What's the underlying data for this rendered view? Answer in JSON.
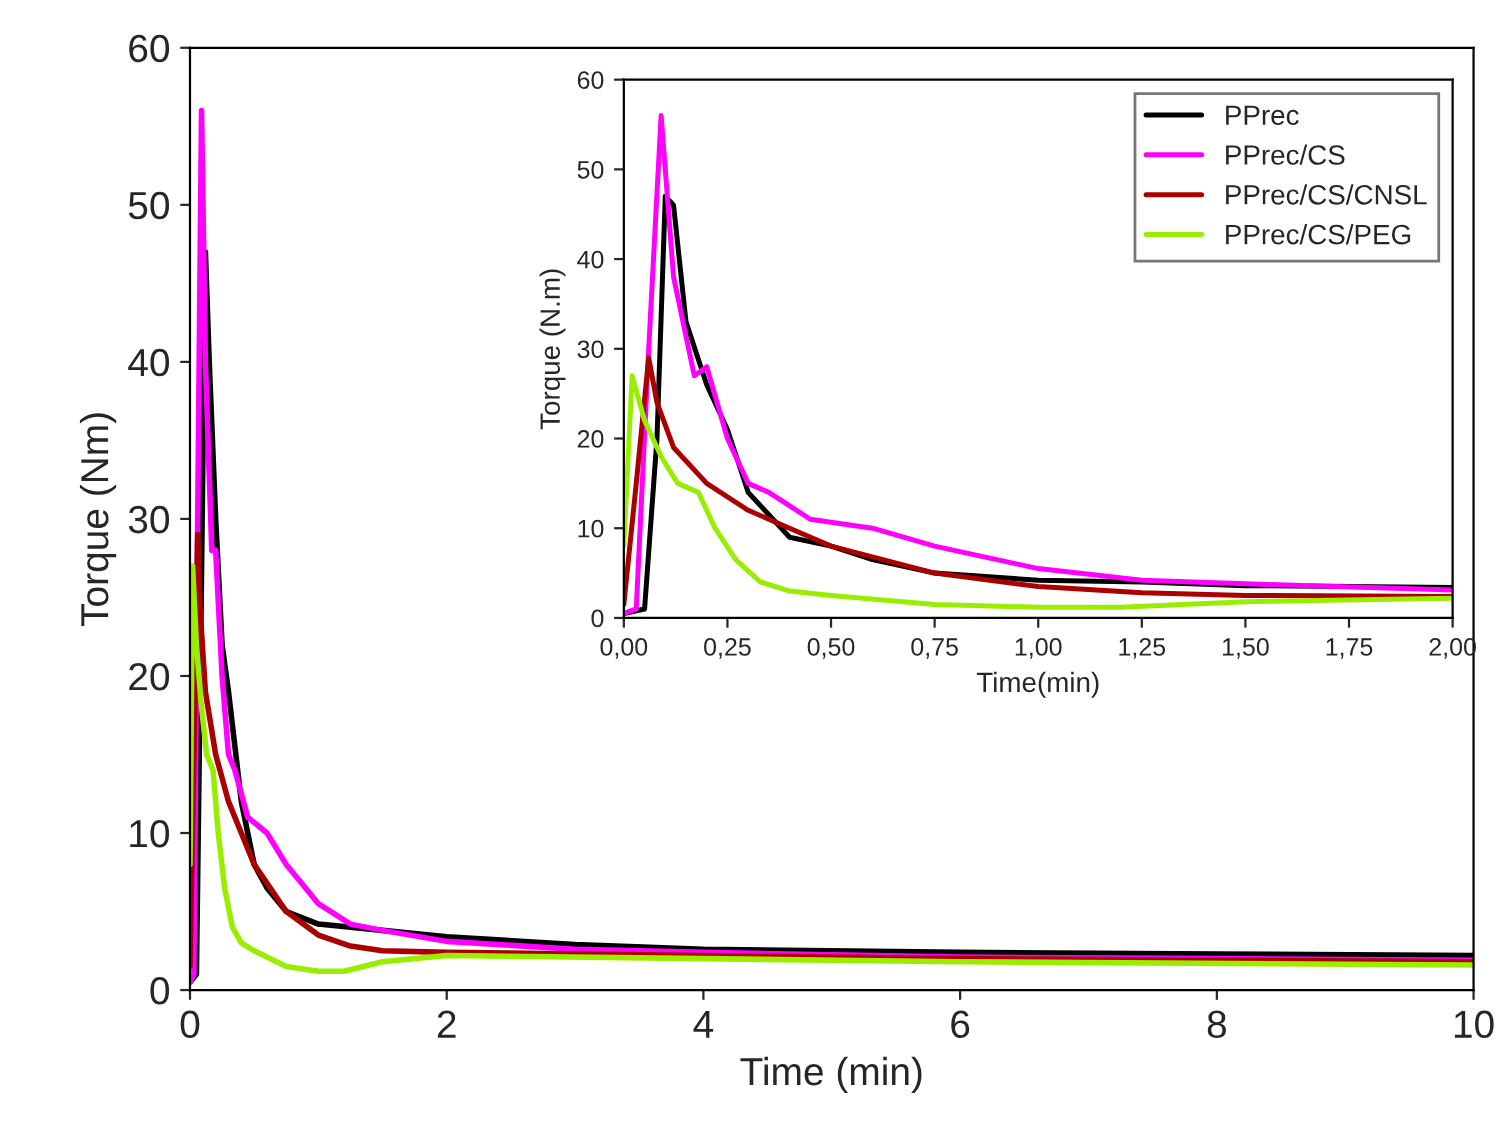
{
  "chart_data": [
    {
      "type": "line",
      "xlabel": "Time (min)",
      "ylabel": "Torque (Nm)",
      "xlim": [
        0,
        10
      ],
      "ylim": [
        0,
        60
      ],
      "xticks": [
        0,
        2,
        4,
        6,
        8,
        10
      ],
      "yticks": [
        0,
        10,
        20,
        30,
        40,
        50,
        60
      ],
      "grid": false,
      "legend": false,
      "series": [
        {
          "color": "#000000",
          "x": [
            0,
            0.05,
            0.08,
            0.12,
            0.15,
            0.2,
            0.25,
            0.3,
            0.4,
            0.5,
            0.6,
            0.75,
            1,
            1.5,
            2,
            3,
            4,
            6,
            8,
            10
          ],
          "values": [
            0.5,
            1,
            20,
            47,
            40,
            30,
            22,
            19,
            12,
            8,
            6.5,
            5,
            4.2,
            3.8,
            3.4,
            2.9,
            2.6,
            2.4,
            2.3,
            2.2
          ]
        },
        {
          "color": "#ff00ff",
          "x": [
            0,
            0.03,
            0.06,
            0.09,
            0.12,
            0.17,
            0.2,
            0.25,
            0.3,
            0.35,
            0.45,
            0.6,
            0.75,
            0.9,
            1,
            1.25,
            1.5,
            2,
            3,
            4,
            6,
            8,
            10
          ],
          "values": [
            0.5,
            1,
            30,
            56,
            40,
            28,
            28,
            20,
            15,
            14,
            11,
            10,
            8,
            6.5,
            5.5,
            4.2,
            3.8,
            3.1,
            2.6,
            2.4,
            2.1,
            2.0,
            1.9
          ]
        },
        {
          "color": "#aa0000",
          "x": [
            0,
            0.03,
            0.06,
            0.08,
            0.12,
            0.2,
            0.3,
            0.4,
            0.5,
            0.75,
            1,
            1.25,
            1.5,
            2,
            4,
            6,
            10
          ],
          "values": [
            1.5,
            15,
            29,
            24,
            19,
            15,
            12,
            10,
            8,
            5,
            3.5,
            2.8,
            2.5,
            2.4,
            2.2,
            2.0,
            1.8
          ]
        },
        {
          "color": "#99ee00",
          "x": [
            0,
            0.02,
            0.05,
            0.09,
            0.13,
            0.18,
            0.22,
            0.27,
            0.33,
            0.4,
            0.5,
            0.75,
            1,
            1.2,
            1.5,
            2,
            4,
            6,
            10
          ],
          "values": [
            8,
            27,
            22,
            18,
            15,
            14,
            10,
            6.5,
            4,
            3,
            2.5,
            1.5,
            1.2,
            1.2,
            1.8,
            2.2,
            2.0,
            1.8,
            1.6
          ]
        }
      ]
    },
    {
      "type": "line",
      "xlabel": "Time(min)",
      "ylabel": "Torque (N.m)",
      "xlim": [
        0,
        2
      ],
      "ylim": [
        0,
        60
      ],
      "xticks": [
        {
          "value": 0,
          "label": "0,00"
        },
        {
          "value": 0.25,
          "label": "0,25"
        },
        {
          "value": 0.5,
          "label": "0,50"
        },
        {
          "value": 0.75,
          "label": "0,75"
        },
        {
          "value": 1,
          "label": "1,00"
        },
        {
          "value": 1.25,
          "label": "1,25"
        },
        {
          "value": 1.5,
          "label": "1,50"
        },
        {
          "value": 1.75,
          "label": "1,75"
        },
        {
          "value": 2,
          "label": "2,00"
        }
      ],
      "yticks": [
        0,
        10,
        20,
        30,
        40,
        50,
        60
      ],
      "grid": false,
      "legend": "top right",
      "series": [
        {
          "name": "PPrec",
          "color": "#000000",
          "x": [
            0,
            0.05,
            0.08,
            0.1,
            0.12,
            0.15,
            0.2,
            0.25,
            0.3,
            0.4,
            0.5,
            0.6,
            0.75,
            1,
            1.25,
            1.5,
            2
          ],
          "values": [
            0.5,
            1,
            20,
            47,
            46,
            33,
            26,
            21,
            14,
            9,
            8,
            6.5,
            5,
            4.2,
            4,
            3.6,
            3.4
          ]
        },
        {
          "name": "PPrec/CS",
          "color": "#ff00ff",
          "x": [
            0,
            0.03,
            0.06,
            0.09,
            0.12,
            0.17,
            0.2,
            0.25,
            0.3,
            0.35,
            0.45,
            0.6,
            0.75,
            0.9,
            1,
            1.25,
            1.5,
            2
          ],
          "values": [
            0.5,
            1,
            30,
            56,
            38,
            27,
            28,
            20,
            15,
            14,
            11,
            10,
            8,
            6.5,
            5.5,
            4.2,
            3.8,
            3.1
          ]
        },
        {
          "name": "PPrec/CS/CNSL",
          "color": "#aa0000",
          "x": [
            0,
            0.03,
            0.06,
            0.08,
            0.12,
            0.2,
            0.3,
            0.4,
            0.5,
            0.75,
            1,
            1.25,
            1.5,
            2
          ],
          "values": [
            1.5,
            15,
            29,
            24,
            19,
            15,
            12,
            10,
            8,
            5,
            3.5,
            2.8,
            2.5,
            2.4
          ]
        },
        {
          "name": "PPrec/CS/PEG",
          "color": "#99ee00",
          "x": [
            0,
            0.02,
            0.05,
            0.09,
            0.13,
            0.18,
            0.22,
            0.27,
            0.33,
            0.4,
            0.5,
            0.75,
            1,
            1.2,
            1.5,
            2
          ],
          "values": [
            8,
            27,
            22,
            18,
            15,
            14,
            10,
            6.5,
            4,
            3,
            2.5,
            1.5,
            1.2,
            1.2,
            1.8,
            2.2
          ]
        }
      ]
    }
  ]
}
